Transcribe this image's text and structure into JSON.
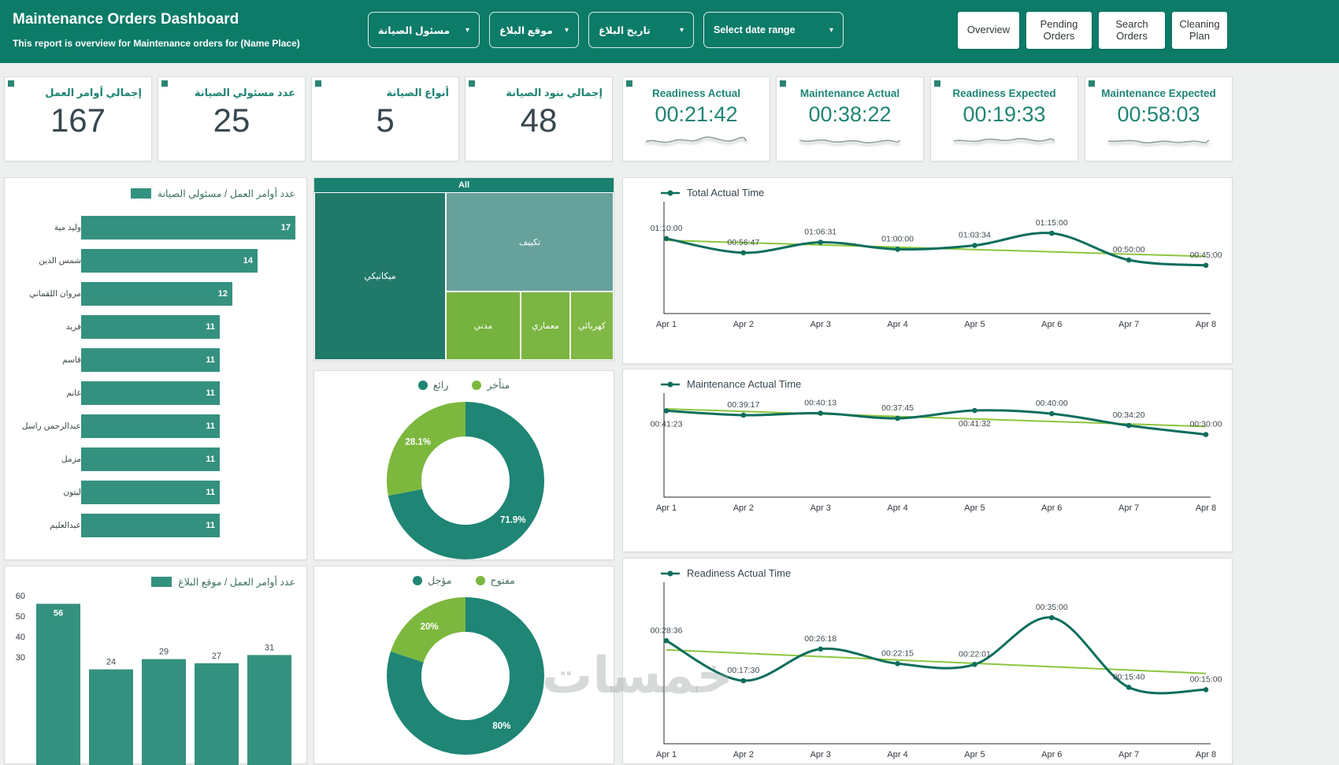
{
  "theme": {
    "header_bg": "#0c7b68",
    "teal": "#1f8575",
    "bar_fill": "#35917f",
    "dark_line": "#0d6e5d",
    "green": "#7cb83e",
    "trend_green": "#8cc63f",
    "value_dark": "#37474f"
  },
  "header": {
    "title": "Maintenance Orders Dashboard",
    "subtitle": "This report is overview for Maintenance orders for (Name Place)",
    "filters": [
      {
        "label": "مسئول الصيانة"
      },
      {
        "label": "موقع البلاغ"
      },
      {
        "label": "تاريخ البلاغ"
      },
      {
        "label": "Select date range"
      }
    ],
    "nav": [
      "Overview",
      "Pending Orders",
      "Search Orders",
      "Cleaning Plan"
    ]
  },
  "kpis": [
    {
      "label": "إجمالي أوامر العمل",
      "value": "167"
    },
    {
      "label": "عدد مسئولي الصيانة",
      "value": "25"
    },
    {
      "label": "أنواع الصيانة",
      "value": "5"
    },
    {
      "label": "إجمالي بنود الصيانة",
      "value": "48"
    },
    {
      "label": "Readiness Actual",
      "value": "00:21:42"
    },
    {
      "label": "Maintenance Actual",
      "value": "00:38:22"
    },
    {
      "label": "Readiness Expected",
      "value": "00:19:33"
    },
    {
      "label": "Maintenance Expected",
      "value": "00:58:03"
    }
  ],
  "charts": {
    "by_supervisor": {
      "type": "bar",
      "title": "عدد أوامر العمل / مسئولي الصيانة",
      "categories": [
        "وليد مية",
        "شمس الدين",
        "مروان اللقماني",
        "فريد",
        "قاسم",
        "غانم",
        "عبدالرحمن راسل",
        "مزمل",
        "ليتون",
        "عبدالعليم"
      ],
      "values": [
        17,
        14,
        12,
        11,
        11,
        11,
        11,
        11,
        11,
        11
      ]
    },
    "by_location": {
      "type": "bar",
      "title": "عدد أوامر العمل / موقع البلاغ",
      "values": [
        56,
        24,
        29,
        27,
        31
      ],
      "y_ticks": [
        60,
        50,
        40,
        30
      ]
    },
    "treemap": {
      "type": "treemap",
      "title": "All",
      "cells": [
        {
          "label": "ميكانيكي",
          "color": "#21796a"
        },
        {
          "label": "تكييف",
          "color": "#67a19b"
        },
        {
          "label": "مدني",
          "color": "#76b23e"
        },
        {
          "label": "معماري",
          "color": "#7bb542"
        },
        {
          "label": "كهربائي",
          "color": "#80b846"
        }
      ]
    },
    "donut_status": {
      "type": "pie",
      "slices": [
        {
          "label": "رائع",
          "pct": 71.9,
          "color": "#1f8575"
        },
        {
          "label": "متأخر",
          "pct": 28.1,
          "color": "#7cb83e"
        }
      ]
    },
    "donut_open": {
      "type": "pie",
      "slices": [
        {
          "label": "مؤجل",
          "pct": 80,
          "color": "#1f8575"
        },
        {
          "label": "مفتوح",
          "pct": 20,
          "color": "#7cb83e"
        }
      ]
    },
    "total_actual": {
      "type": "line",
      "title": "Total Actual Time",
      "points": [
        {
          "x": "Apr 1",
          "time": "01:10:00",
          "pos": "above"
        },
        {
          "x": "Apr 2",
          "time": "00:56:47",
          "pos": "above"
        },
        {
          "x": "Apr 3",
          "time": "01:06:31",
          "pos": "above"
        },
        {
          "x": "Apr 4",
          "time": "01:00:00",
          "pos": "above"
        },
        {
          "x": "Apr 5",
          "time": "01:03:34",
          "pos": "above"
        },
        {
          "x": "Apr 6",
          "time": "01:15:00",
          "pos": "above"
        },
        {
          "x": "Apr 7",
          "time": "00:50:00",
          "pos": "above"
        },
        {
          "x": "Apr 8",
          "time": "00:45:00",
          "pos": "above"
        }
      ]
    },
    "maintenance_actual": {
      "type": "line",
      "title": "Maintenance Actual Time",
      "points": [
        {
          "x": "Apr 1",
          "time": "00:41:23",
          "pos": "below"
        },
        {
          "x": "Apr 2",
          "time": "00:39:17",
          "pos": "above"
        },
        {
          "x": "Apr 3",
          "time": "00:40:13",
          "pos": "above"
        },
        {
          "x": "Apr 4",
          "time": "00:37:45",
          "pos": "above"
        },
        {
          "x": "Apr 5",
          "time": "00:41:32",
          "pos": "below"
        },
        {
          "x": "Apr 6",
          "time": "00:40:00",
          "pos": "above"
        },
        {
          "x": "Apr 7",
          "time": "00:34:20",
          "pos": "above"
        },
        {
          "x": "Apr 8",
          "time": "00:30:00",
          "pos": "above"
        }
      ]
    },
    "readiness_actual": {
      "type": "line",
      "title": "Readiness Actual Time",
      "points": [
        {
          "x": "Apr 1",
          "time": "00:28:36",
          "pos": "above"
        },
        {
          "x": "Apr 2",
          "time": "00:17:30",
          "pos": "above"
        },
        {
          "x": "Apr 3",
          "time": "00:26:18",
          "pos": "above"
        },
        {
          "x": "Apr 4",
          "time": "00:22:15",
          "pos": "above"
        },
        {
          "x": "Apr 5",
          "time": "00:22:01",
          "pos": "above"
        },
        {
          "x": "Apr 6",
          "time": "00:35:00",
          "pos": "above"
        },
        {
          "x": "Apr 7",
          "time": "00:15:40",
          "pos": "above"
        },
        {
          "x": "Apr 8",
          "time": "00:15:00",
          "pos": "above"
        }
      ]
    }
  },
  "watermark": "خمسات"
}
